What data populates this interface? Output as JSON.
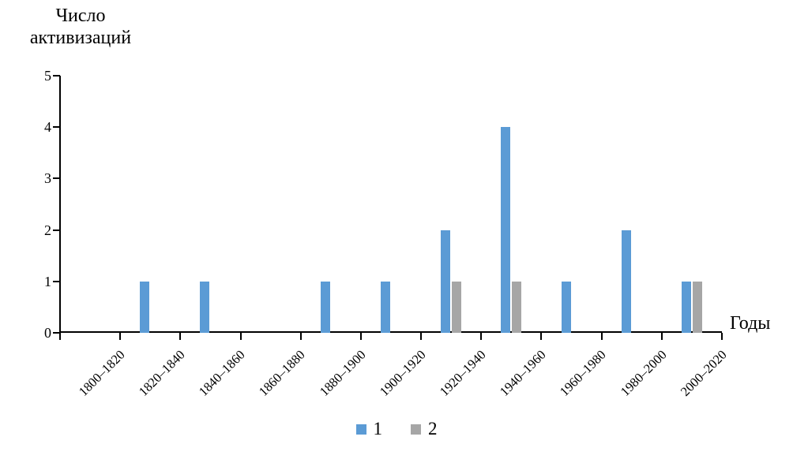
{
  "axis_titles": {
    "y_line1": "Число",
    "y_line2": "активизаций",
    "x": "Годы"
  },
  "chart_data": {
    "type": "bar",
    "title": "",
    "ylabel": "Число активизаций",
    "xlabel": "Годы",
    "categories": [
      "1800–1820",
      "1820–1840",
      "1840–1860",
      "1860–1880",
      "1880–1900",
      "1900–1920",
      "1920–1940",
      "1940–1960",
      "1960–1980",
      "1980–2000",
      "2000–2020"
    ],
    "series": [
      {
        "name": "1",
        "color": "#5B9BD5",
        "values": [
          0,
          1,
          1,
          0,
          1,
          1,
          2,
          4,
          1,
          2,
          1
        ]
      },
      {
        "name": "2",
        "color": "#A6A6A6",
        "values": [
          0,
          0,
          0,
          0,
          0,
          0,
          1,
          1,
          0,
          0,
          1
        ]
      }
    ],
    "ylim": [
      0,
      5
    ],
    "yticks": [
      0,
      1,
      2,
      3,
      4,
      5
    ],
    "grid": false,
    "legend_position": "bottom"
  }
}
